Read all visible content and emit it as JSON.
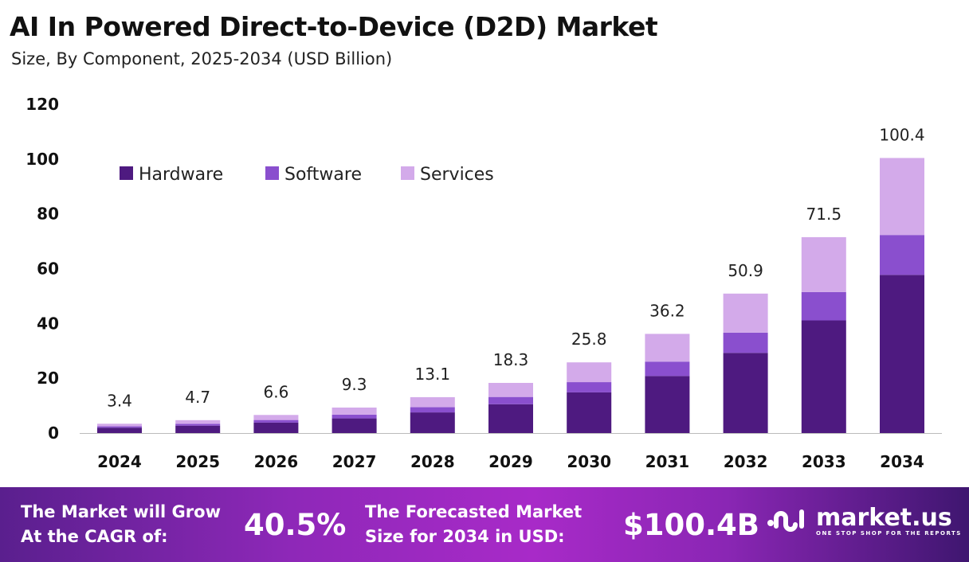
{
  "header": {
    "title": "AI In Powered Direct-to-Device (D2D) Market",
    "subtitle": "Size, By Component, 2025-2034 (USD Billion)"
  },
  "chart_data": {
    "type": "bar",
    "stacked": true,
    "categories": [
      "2024",
      "2025",
      "2026",
      "2027",
      "2028",
      "2029",
      "2030",
      "2031",
      "2032",
      "2033",
      "2034"
    ],
    "series": [
      {
        "name": "Hardware",
        "color": "#4e1a80",
        "values": [
          1.96,
          2.7,
          3.8,
          5.35,
          7.53,
          10.52,
          14.84,
          20.82,
          29.27,
          41.11,
          57.73
        ]
      },
      {
        "name": "Software",
        "color": "#8a4fce",
        "values": [
          0.49,
          0.68,
          0.96,
          1.35,
          1.9,
          2.65,
          3.74,
          5.25,
          7.38,
          10.37,
          14.56
        ]
      },
      {
        "name": "Services",
        "color": "#d3aaea",
        "values": [
          0.95,
          1.32,
          1.84,
          2.6,
          3.67,
          5.13,
          7.22,
          10.13,
          14.25,
          20.02,
          28.11
        ]
      }
    ],
    "totals": [
      "3.4",
      "4.7",
      "6.6",
      "9.3",
      "13.1",
      "18.3",
      "25.8",
      "36.2",
      "50.9",
      "71.5",
      "100.4"
    ],
    "yticks": [
      "0",
      "20",
      "40",
      "60",
      "80",
      "100",
      "120"
    ],
    "ylim": [
      0,
      120
    ],
    "grid": false,
    "legend": "top-left"
  },
  "footer": {
    "cagr_label": [
      "The Market will Grow",
      "At the CAGR of:"
    ],
    "cagr_value": "40.5%",
    "forecast_label": [
      "The Forecasted Market",
      "Size for 2034 in USD:"
    ],
    "forecast_value": "$100.4B",
    "logo": {
      "name": "market.us",
      "tagline": "ONE STOP SHOP FOR THE REPORTS"
    }
  }
}
